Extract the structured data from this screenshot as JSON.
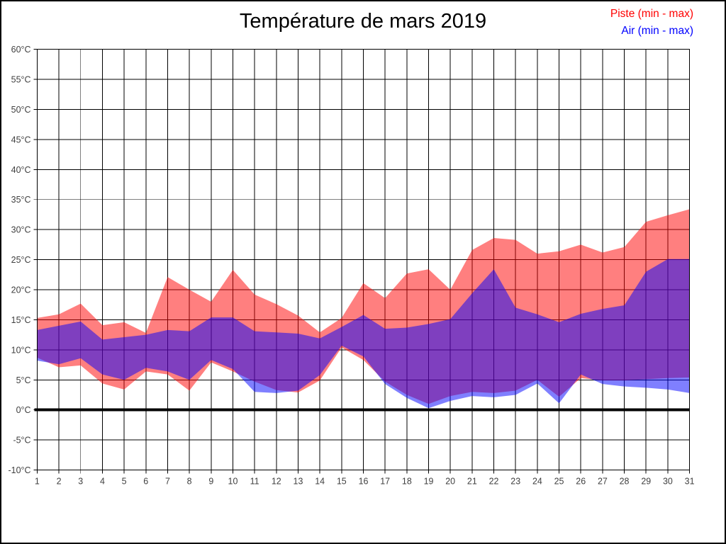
{
  "title": "Température de mars 2019",
  "legend": [
    {
      "label": "Piste (min - max)",
      "color": "#ff0000"
    },
    {
      "label": "Air (min - max)",
      "color": "#0000ff"
    }
  ],
  "chart_data": {
    "type": "area",
    "subtype": "min-max-range-bands",
    "title": "Température de mars 2019",
    "xlabel": "",
    "ylabel": "",
    "x": [
      1,
      2,
      3,
      4,
      5,
      6,
      7,
      8,
      9,
      10,
      11,
      12,
      13,
      14,
      15,
      16,
      17,
      18,
      19,
      20,
      21,
      22,
      23,
      24,
      25,
      26,
      27,
      28,
      29,
      30,
      31
    ],
    "series": [
      {
        "name": "Piste (min - max)",
        "color": "#ff0000",
        "fill_opacity": 0.5,
        "min": [
          8.7,
          7.1,
          7.4,
          4.4,
          3.4,
          6.4,
          5.9,
          3.2,
          7.9,
          6.4,
          4.7,
          3.3,
          2.9,
          4.9,
          10.4,
          8.3,
          4.7,
          2.5,
          1.0,
          2.3,
          3.0,
          2.8,
          3.2,
          5.0,
          2.2,
          5.3,
          4.9,
          4.9,
          5.1,
          5.3,
          5.4
        ],
        "max": [
          15.3,
          15.9,
          17.7,
          14.1,
          14.6,
          12.8,
          22.1,
          20.0,
          18.0,
          23.3,
          19.2,
          17.6,
          15.7,
          12.9,
          15.3,
          21.1,
          18.6,
          22.7,
          23.4,
          20.0,
          26.6,
          28.6,
          28.3,
          26.0,
          26.4,
          27.5,
          26.2,
          27.1,
          31.3,
          32.4,
          33.4
        ]
      },
      {
        "name": "Air (min - max)",
        "color": "#0000ff",
        "fill_opacity": 0.5,
        "min": [
          8.2,
          7.6,
          8.6,
          5.9,
          5.0,
          7.0,
          6.4,
          5.0,
          8.3,
          6.8,
          3.0,
          2.8,
          3.2,
          5.8,
          10.7,
          8.9,
          4.3,
          2.0,
          0.3,
          1.5,
          2.3,
          2.1,
          2.5,
          4.4,
          1.1,
          5.9,
          4.3,
          3.9,
          3.7,
          3.4,
          2.8
        ],
        "max": [
          13.3,
          14.0,
          14.7,
          11.7,
          12.1,
          12.5,
          13.3,
          13.1,
          15.4,
          15.4,
          13.1,
          12.9,
          12.7,
          11.9,
          13.8,
          15.8,
          13.5,
          13.7,
          14.3,
          15.1,
          19.4,
          23.4,
          17.0,
          15.9,
          14.6,
          16.0,
          16.8,
          17.4,
          23.0,
          25.1,
          25.1
        ]
      }
    ],
    "ylim": [
      -10,
      60
    ],
    "ytick_step": 5,
    "ytick_labels": [
      "-10°C",
      "-5°C",
      "0°C",
      "5°C",
      "10°C",
      "15°C",
      "20°C",
      "25°C",
      "30°C",
      "35°C",
      "40°C",
      "45°C",
      "50°C",
      "55°C",
      "60°C"
    ],
    "xtick_labels": [
      "1",
      "2",
      "3",
      "4",
      "5",
      "6",
      "7",
      "8",
      "9",
      "10",
      "11",
      "12",
      "13",
      "14",
      "15",
      "16",
      "17",
      "18",
      "19",
      "20",
      "21",
      "22",
      "23",
      "24",
      "25",
      "26",
      "27",
      "28",
      "29",
      "30",
      "31"
    ],
    "grid": true,
    "grid_color": "#000000",
    "zero_line": true,
    "zero_line_width": 4,
    "legend_position": "top-right",
    "background": "#ffffff"
  }
}
